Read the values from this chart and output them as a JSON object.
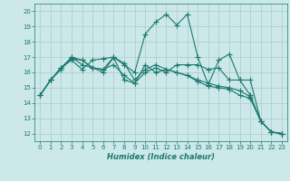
{
  "title": "",
  "xlabel": "Humidex (Indice chaleur)",
  "ylabel": "",
  "bg_color": "#cce8e8",
  "grid_color": "#aacccc",
  "line_color": "#1a7a6e",
  "xlim": [
    -0.5,
    23.5
  ],
  "ylim": [
    11.5,
    20.5
  ],
  "xticks": [
    0,
    1,
    2,
    3,
    4,
    5,
    6,
    7,
    8,
    9,
    10,
    11,
    12,
    13,
    14,
    15,
    16,
    17,
    18,
    19,
    20,
    21,
    22,
    23
  ],
  "yticks": [
    12,
    13,
    14,
    15,
    16,
    17,
    18,
    19,
    20
  ],
  "line1": [
    14.5,
    15.5,
    16.3,
    16.8,
    16.2,
    16.8,
    16.9,
    17.0,
    16.5,
    16.0,
    18.5,
    19.3,
    19.8,
    19.1,
    19.8,
    17.0,
    15.2,
    16.8,
    17.2,
    15.5,
    15.5,
    12.8,
    12.1,
    12.0
  ],
  "line2": [
    14.5,
    15.5,
    16.2,
    17.0,
    16.5,
    16.3,
    16.0,
    17.0,
    16.6,
    15.5,
    16.2,
    16.5,
    16.2,
    16.0,
    15.8,
    15.4,
    15.1,
    15.0,
    14.9,
    14.5,
    14.3,
    12.8,
    12.1,
    12.0
  ],
  "line3": [
    14.5,
    15.5,
    16.3,
    16.9,
    16.8,
    16.3,
    16.2,
    17.0,
    15.5,
    15.3,
    16.5,
    16.0,
    16.2,
    16.0,
    15.8,
    15.5,
    15.3,
    15.1,
    15.0,
    14.8,
    14.4,
    12.8,
    12.1,
    12.0
  ],
  "line4": [
    14.5,
    15.5,
    16.3,
    17.0,
    16.8,
    16.3,
    16.2,
    16.5,
    15.8,
    15.3,
    16.0,
    16.3,
    16.0,
    16.5,
    16.5,
    16.5,
    16.2,
    16.3,
    15.5,
    15.5,
    14.5,
    12.8,
    12.1,
    12.0
  ]
}
